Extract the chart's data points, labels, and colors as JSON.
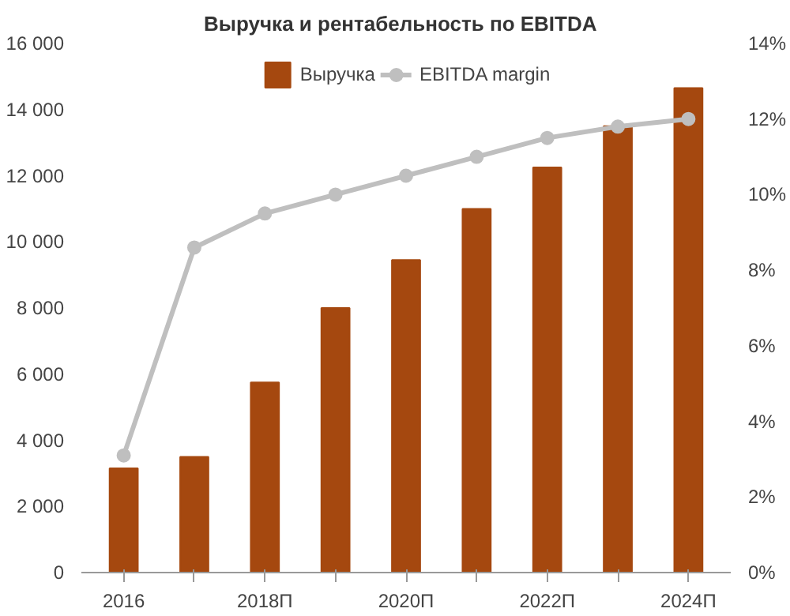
{
  "chart_data": {
    "type": "bar",
    "title": "Выручка  и рентабельность  по EBITDA",
    "categories": [
      "2016",
      null,
      "2018П",
      null,
      "2020П",
      null,
      "2022П",
      null,
      "2024П"
    ],
    "series": [
      {
        "name": "Выручка",
        "color": "#a5480f",
        "values": [
          3150,
          3500,
          5750,
          8000,
          9450,
          11000,
          12250,
          13500,
          14650
        ]
      },
      {
        "name": "EBITDA margin",
        "type": "line",
        "axis": "y2",
        "color": "#bfbfbf",
        "marker": "circle",
        "values": [
          3.1,
          8.6,
          9.5,
          10.0,
          10.5,
          11.0,
          11.5,
          11.8,
          12.0
        ]
      }
    ],
    "ylim": [
      0,
      16000
    ],
    "yticks": [
      0,
      {
        "value": 2000,
        "label": "2 000"
      },
      {
        "value": 4000,
        "label": "4 000"
      },
      {
        "value": 6000,
        "label": "6 000"
      },
      {
        "value": 8000,
        "label": "8 000"
      },
      {
        "value": 10000,
        "label": "10 000"
      },
      {
        "value": 12000,
        "label": "12 000"
      },
      {
        "value": 14000,
        "label": "14 000"
      },
      {
        "value": 16000,
        "label": "16 000"
      }
    ],
    "y2lim": [
      0,
      14
    ],
    "y2ticks": [
      {
        "value": 0,
        "label": "0%"
      },
      {
        "value": 2,
        "label": "2%"
      },
      {
        "value": 4,
        "label": "4%"
      },
      {
        "value": 6,
        "label": "6%"
      },
      {
        "value": 8,
        "label": "8%"
      },
      {
        "value": 10,
        "label": "10%"
      },
      {
        "value": 12,
        "label": "12%"
      },
      {
        "value": 14,
        "label": "14%"
      }
    ],
    "grid": false,
    "legend": "top"
  }
}
